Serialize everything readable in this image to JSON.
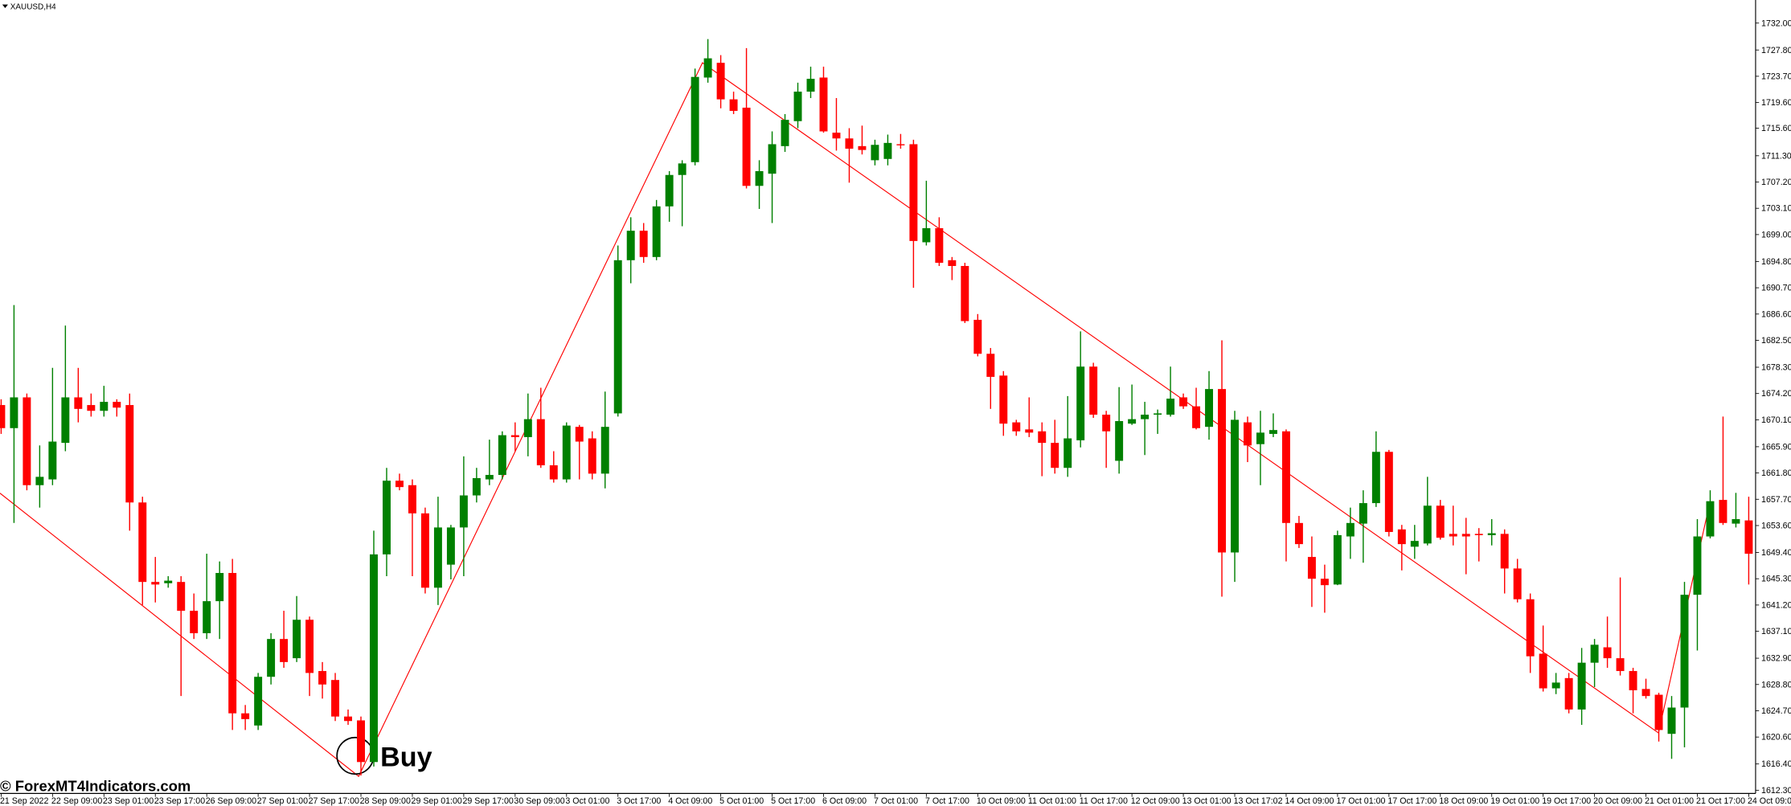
{
  "chart_data": {
    "type": "candlestick",
    "title": "XAUUSD,H4",
    "watermark": "© ForexMT4Indicators.com",
    "annotation": "Buy",
    "up_color": "#008000",
    "down_color": "#ff0000",
    "grid": false,
    "categories": [
      "21 Sep 2022",
      null,
      null,
      null,
      "22 Sep 09:00",
      null,
      null,
      null,
      "23 Sep 01:00",
      null,
      null,
      null,
      "23 Sep 17:00",
      null,
      null,
      null,
      "26 Sep 09:00",
      null,
      null,
      null,
      "27 Sep 01:00",
      null,
      null,
      null,
      "27 Sep 17:00",
      null,
      null,
      null,
      "28 Sep 09:00",
      null,
      null,
      null,
      "29 Sep 01:00",
      null,
      null,
      null,
      "29 Sep 17:00",
      null,
      null,
      null,
      "30 Sep 09:00",
      null,
      null,
      null,
      "3 Oct 01:00",
      null,
      null,
      null,
      "3 Oct 17:00",
      null,
      null,
      null,
      "4 Oct 09:00",
      null,
      null,
      null,
      "5 Oct 01:00",
      null,
      null,
      null,
      "5 Oct 17:00",
      null,
      null,
      null,
      "6 Oct 09:00",
      null,
      null,
      null,
      "7 Oct 01:00",
      null,
      null,
      null,
      "7 Oct 17:00",
      null,
      null,
      null,
      "10 Oct 09:00",
      null,
      null,
      null,
      "11 Oct 01:00",
      null,
      null,
      null,
      "11 Oct 17:00",
      null,
      null,
      null,
      "12 Oct 09:00",
      null,
      null,
      null,
      "13 Oct 01:00",
      null,
      null,
      null,
      "13 Oct 17:02",
      null,
      null,
      null,
      "14 Oct 09:00",
      null,
      null,
      null,
      "17 Oct 01:00",
      null,
      null,
      null,
      "17 Oct 17:00",
      null,
      null,
      null,
      "18 Oct 09:00",
      null,
      null,
      null,
      "19 Oct 01:00",
      null,
      null,
      null,
      "19 Oct 17:00",
      null,
      null,
      null,
      "20 Oct 09:00",
      null,
      null,
      null,
      "21 Oct 01:00",
      null,
      null,
      null,
      "21 Oct 17:00",
      null,
      null,
      null,
      "24 Oct 09:00"
    ],
    "open": [
      1672.4,
      1668.8,
      1673.6,
      1659.9,
      1660.8,
      1666.5,
      1673.6,
      1672.4,
      1671.5,
      1672.9,
      1672.4,
      1657.2,
      1644.8,
      1644.6,
      1644.8,
      1640.3,
      1636.8,
      1641.8,
      1646.2,
      1624.3,
      1622.4,
      1630.0,
      1635.9,
      1632.9,
      1638.9,
      1630.9,
      1629.5,
      1623.8,
      1623.2,
      1616.7,
      1649.1,
      1660.6,
      1659.9,
      1655.5,
      1643.9,
      1647.5,
      1653.3,
      1658.3,
      1660.8,
      1661.5,
      1667.7,
      1667.4,
      1670.2,
      1663.0,
      1660.8,
      1669.0,
      1667.2,
      1661.7,
      1671.1,
      1695.0,
      1699.6,
      1695.5,
      1703.4,
      1708.3,
      1710.3,
      1723.5,
      1725.8,
      1720.1,
      1718.8,
      1706.6,
      1708.5,
      1712.8,
      1716.7,
      1721.3,
      1723.5,
      1714.9,
      1714.0,
      1712.8,
      1710.6,
      1710.8,
      1713.1,
      1713.1,
      1697.8,
      1700.0,
      1695.0,
      1694.1,
      1685.7,
      1680.4,
      1677.0,
      1669.7,
      1668.6,
      1668.3,
      1666.5,
      1662.6,
      1666.9,
      1678.4,
      1670.9,
      1663.7,
      1669.5,
      1670.2,
      1670.9,
      1670.9,
      1673.6,
      1672.2,
      1669.0,
      1674.9,
      1649.4,
      1669.7,
      1666.3,
      1667.9,
      1668.3,
      1654.0,
      1648.7,
      1645.3,
      1644.4,
      1651.9,
      1653.9,
      1657.1,
      1665.1,
      1653.0,
      1650.3,
      1650.8,
      1656.7,
      1652.3,
      1652.3,
      1652.3,
      1652.1,
      1652.3,
      1646.9,
      1642.1,
      1633.6,
      1628.2,
      1629.8,
      1624.9,
      1632.2,
      1634.6,
      1632.9,
      1630.9,
      1628.1,
      1627.2,
      1621.1,
      1625.2,
      1642.8,
      1651.9,
      1657.6,
      1653.9,
      1654.4
    ],
    "high": [
      1673.3,
      1688.0,
      1674.2,
      1666.1,
      1678.2,
      1684.8,
      1678.2,
      1674.2,
      1675.4,
      1673.3,
      1674.2,
      1658.1,
      1648.7,
      1645.7,
      1645.7,
      1643.0,
      1649.2,
      1648.0,
      1648.4,
      1625.6,
      1630.6,
      1636.8,
      1640.3,
      1642.6,
      1639.4,
      1632.3,
      1630.6,
      1624.9,
      1623.8,
      1652.8,
      1662.6,
      1661.7,
      1660.8,
      1656.4,
      1658.1,
      1653.7,
      1664.4,
      1662.6,
      1667.0,
      1668.3,
      1669.7,
      1674.2,
      1675.1,
      1665.2,
      1669.7,
      1669.3,
      1668.3,
      1674.5,
      1697.3,
      1701.7,
      1700.8,
      1704.4,
      1708.9,
      1710.6,
      1724.9,
      1729.5,
      1727.0,
      1721.3,
      1728.1,
      1710.6,
      1715.1,
      1717.8,
      1722.7,
      1725.2,
      1725.2,
      1720.3,
      1715.6,
      1716.0,
      1713.8,
      1714.6,
      1714.7,
      1713.8,
      1707.4,
      1701.7,
      1695.5,
      1694.6,
      1686.6,
      1681.3,
      1677.7,
      1670.1,
      1673.6,
      1669.7,
      1670.1,
      1673.8,
      1683.9,
      1679.0,
      1671.5,
      1675.2,
      1675.6,
      1672.9,
      1671.7,
      1678.4,
      1674.2,
      1675.1,
      1677.7,
      1682.5,
      1671.5,
      1670.6,
      1671.5,
      1671.1,
      1668.6,
      1655.1,
      1651.9,
      1647.5,
      1652.8,
      1656.4,
      1659.1,
      1668.3,
      1665.4,
      1653.7,
      1653.7,
      1661.2,
      1657.6,
      1656.7,
      1654.8,
      1653.2,
      1654.6,
      1653.0,
      1648.4,
      1643.0,
      1638.0,
      1630.6,
      1630.6,
      1634.5,
      1635.9,
      1639.4,
      1645.5,
      1631.4,
      1629.7,
      1627.5,
      1627.0,
      1644.8,
      1654.6,
      1659.1,
      1670.6,
      1658.7,
      1658.1
    ],
    "low": [
      1667.9,
      1654.0,
      1659.1,
      1656.4,
      1659.9,
      1665.2,
      1669.7,
      1670.6,
      1670.6,
      1670.6,
      1652.8,
      1641.2,
      1641.6,
      1643.9,
      1627.0,
      1635.9,
      1635.9,
      1635.9,
      1621.7,
      1621.7,
      1621.7,
      1628.8,
      1631.4,
      1632.3,
      1627.0,
      1626.6,
      1623.1,
      1622.5,
      1614.6,
      1616.0,
      1645.7,
      1659.1,
      1645.7,
      1643.0,
      1641.2,
      1645.2,
      1645.7,
      1657.2,
      1659.9,
      1660.8,
      1665.2,
      1664.4,
      1662.6,
      1660.3,
      1660.3,
      1660.8,
      1660.8,
      1659.4,
      1670.6,
      1691.4,
      1694.6,
      1695.0,
      1701.0,
      1700.3,
      1709.8,
      1722.7,
      1718.7,
      1717.8,
      1706.2,
      1703.0,
      1700.8,
      1711.9,
      1715.6,
      1720.3,
      1714.9,
      1712.1,
      1707.1,
      1711.5,
      1709.8,
      1709.8,
      1712.4,
      1690.7,
      1697.3,
      1694.1,
      1691.9,
      1685.2,
      1680.0,
      1671.8,
      1667.6,
      1667.6,
      1667.4,
      1661.3,
      1661.7,
      1661.2,
      1665.8,
      1670.4,
      1662.6,
      1661.7,
      1669.3,
      1664.6,
      1667.9,
      1670.6,
      1671.8,
      1668.6,
      1667.0,
      1642.5,
      1644.8,
      1663.5,
      1659.9,
      1667.4,
      1648.0,
      1650.1,
      1640.9,
      1640.0,
      1644.3,
      1648.4,
      1647.8,
      1656.5,
      1651.9,
      1646.6,
      1648.4,
      1650.5,
      1651.4,
      1650.5,
      1646.0,
      1648.0,
      1650.5,
      1643.0,
      1641.6,
      1630.6,
      1627.7,
      1627.3,
      1624.3,
      1622.5,
      1628.4,
      1631.4,
      1630.2,
      1624.3,
      1626.6,
      1619.9,
      1617.2,
      1619.0,
      1634.1,
      1651.6,
      1653.7,
      1653.3,
      1644.4
    ],
    "close": [
      1668.8,
      1673.6,
      1659.9,
      1661.2,
      1666.7,
      1673.6,
      1671.8,
      1671.5,
      1672.9,
      1672.0,
      1657.2,
      1644.8,
      1644.4,
      1645.0,
      1640.3,
      1636.8,
      1641.8,
      1646.2,
      1624.3,
      1623.4,
      1630.0,
      1635.9,
      1632.3,
      1638.9,
      1630.6,
      1628.8,
      1623.8,
      1623.1,
      1616.7,
      1649.1,
      1660.6,
      1659.6,
      1655.5,
      1643.9,
      1653.3,
      1653.3,
      1658.3,
      1661.0,
      1661.5,
      1667.7,
      1667.4,
      1670.2,
      1663.0,
      1660.8,
      1669.2,
      1666.7,
      1661.7,
      1669.0,
      1695.0,
      1699.6,
      1695.5,
      1703.4,
      1708.3,
      1710.1,
      1723.6,
      1726.5,
      1720.1,
      1718.3,
      1706.6,
      1708.9,
      1713.1,
      1716.9,
      1721.3,
      1723.3,
      1715.1,
      1714.0,
      1712.4,
      1712.2,
      1713.0,
      1713.3,
      1713.0,
      1698.0,
      1700.0,
      1694.6,
      1694.1,
      1685.5,
      1680.4,
      1676.8,
      1669.5,
      1668.3,
      1668.1,
      1666.5,
      1662.6,
      1667.2,
      1678.4,
      1670.9,
      1668.3,
      1669.9,
      1670.2,
      1670.9,
      1671.1,
      1673.4,
      1672.2,
      1668.8,
      1674.9,
      1649.4,
      1670.1,
      1666.1,
      1668.1,
      1668.5,
      1654.0,
      1650.7,
      1645.3,
      1644.3,
      1652.1,
      1654.0,
      1657.1,
      1665.1,
      1652.6,
      1650.7,
      1651.2,
      1656.7,
      1651.7,
      1651.9,
      1651.9,
      1652.1,
      1652.4,
      1646.9,
      1642.1,
      1633.2,
      1628.2,
      1629.1,
      1624.9,
      1632.2,
      1635.0,
      1632.9,
      1630.9,
      1627.9,
      1627.0,
      1621.7,
      1625.2,
      1642.8,
      1651.9,
      1657.4,
      1654.0,
      1654.6,
      1649.2
    ],
    "ylim": [
      1611.8,
      1735.6
    ],
    "yticks": [
      {
        "value": 1732,
        "label": "1732.00"
      },
      {
        "value": 1727.8,
        "label": "1727.80"
      },
      {
        "value": 1723.7,
        "label": "1723.70"
      },
      {
        "value": 1719.6,
        "label": "1719.60"
      },
      {
        "value": 1715.6,
        "label": "1715.60"
      },
      {
        "value": 1711.3,
        "label": "1711.30"
      },
      {
        "value": 1707.2,
        "label": "1707.20"
      },
      {
        "value": 1703.1,
        "label": "1703.10"
      },
      {
        "value": 1699,
        "label": "1699.00"
      },
      {
        "value": 1694.8,
        "label": "1694.80"
      },
      {
        "value": 1690.7,
        "label": "1690.70"
      },
      {
        "value": 1686.6,
        "label": "1686.60"
      },
      {
        "value": 1682.5,
        "label": "1682.50"
      },
      {
        "value": 1678.3,
        "label": "1678.30"
      },
      {
        "value": 1674.2,
        "label": "1674.20"
      },
      {
        "value": 1670.1,
        "label": "1670.10"
      },
      {
        "value": 1665.9,
        "label": "1665.90"
      },
      {
        "value": 1661.8,
        "label": "1661.80"
      },
      {
        "value": 1657.7,
        "label": "1657.70"
      },
      {
        "value": 1653.6,
        "label": "1653.60"
      },
      {
        "value": 1649.4,
        "label": "1649.40"
      },
      {
        "value": 1645.3,
        "label": "1645.30"
      },
      {
        "value": 1641.2,
        "label": "1641.20"
      },
      {
        "value": 1637.1,
        "label": "1637.10"
      },
      {
        "value": 1632.9,
        "label": "1632.90"
      },
      {
        "value": 1628.8,
        "label": "1628.80"
      },
      {
        "value": 1624.7,
        "label": "1624.70"
      },
      {
        "value": 1620.6,
        "label": "1620.60"
      },
      {
        "value": 1616.4,
        "label": "1616.40"
      },
      {
        "value": 1612.3,
        "label": "1612.30"
      }
    ]
  }
}
